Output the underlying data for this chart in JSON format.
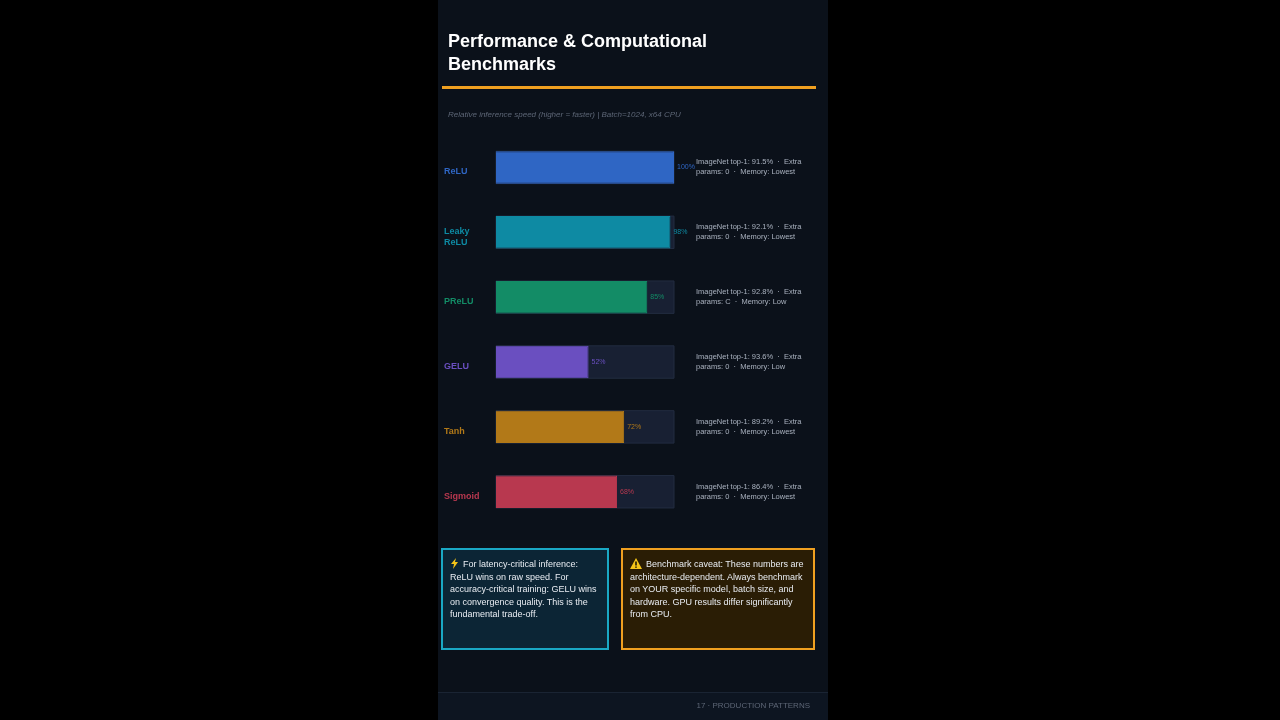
{
  "chart_data": {
    "type": "bar",
    "orientation": "horizontal",
    "title": "Performance & Computational Benchmarks",
    "subtitle": "Relative inference speed (higher = faster)  |  Batch=1024, x64 CPU",
    "categories": [
      "ReLU",
      "Leaky ReLU",
      "PReLU",
      "GELU",
      "Tanh",
      "Sigmoid"
    ],
    "values": [
      100,
      98,
      85,
      52,
      72,
      68
    ],
    "colors": [
      "#2f66c4",
      "#0e8aa3",
      "#138c66",
      "#6a4fc0",
      "#b27918",
      "#b8384f"
    ],
    "value_labels": [
      "100%",
      "98%",
      "85%",
      "52%",
      "72%",
      "68%"
    ],
    "xlim": [
      0,
      100
    ],
    "tick_labels": "y",
    "annotations": [
      "ImageNet top-1: 91.5%  ·  Extra params: 0  ·  Memory: Lowest",
      "ImageNet top-1: 92.1%  ·  Extra params: 0  ·  Memory: Lowest",
      "ImageNet top-1: 92.8%  ·  Extra params: C  ·  Memory: Low",
      "ImageNet top-1: 93.6%  ·  Extra params: 0  ·  Memory: Low",
      "ImageNet top-1: 89.2%  ·  Extra params: 0  ·  Memory: Lowest",
      "ImageNet top-1: 86.4%  ·  Extra params: 0  ·  Memory: Lowest",
      "For latency-critical inference: ReLU wins on raw speed. For accuracy-critical training: GELU wins on convergence quality. This is the fundamental trade-off.",
      "Benchmark caveat: These numbers are architecture-dependent. Always benchmark on YOUR specific model, batch size, and hardware. GPU results differ significantly from CPU.",
      "17  ·  PRODUCTION PATTERNS"
    ]
  }
}
